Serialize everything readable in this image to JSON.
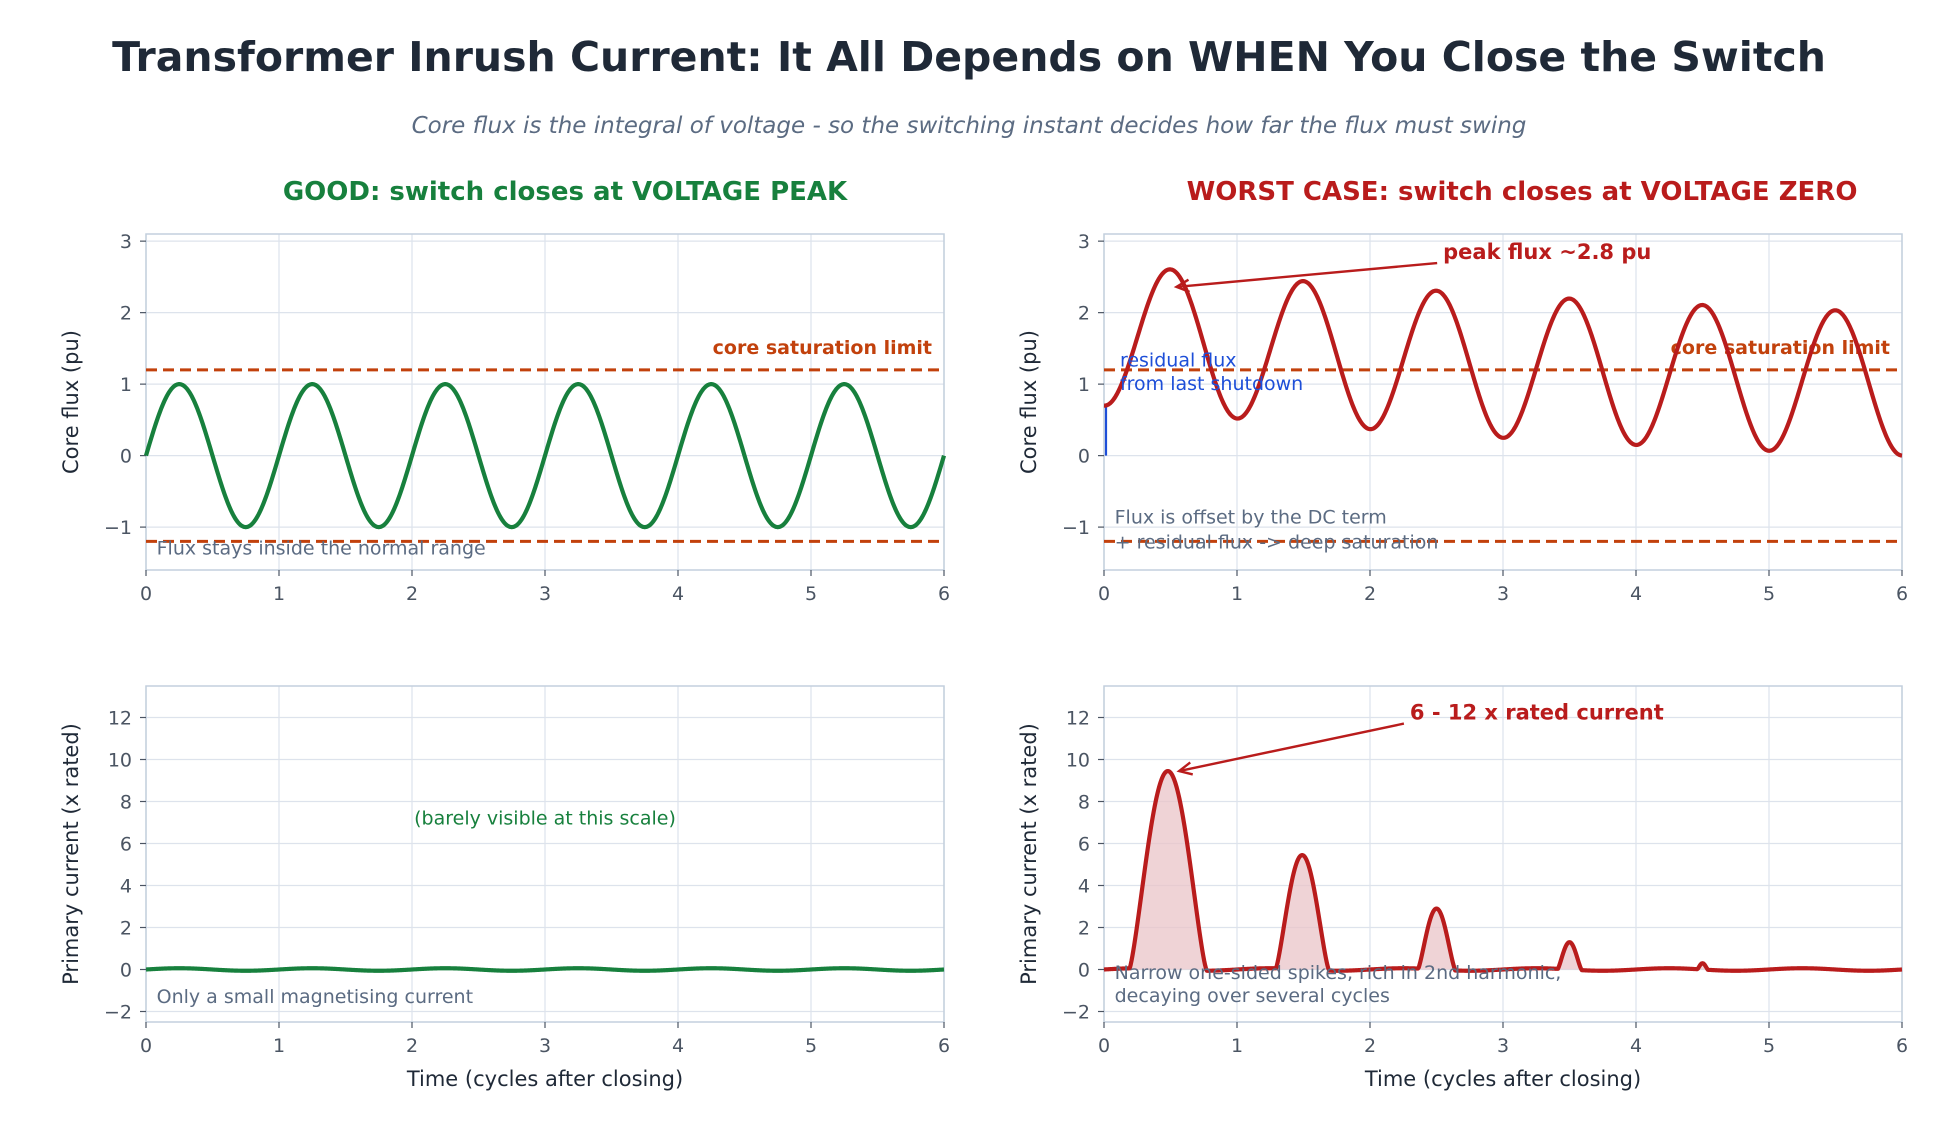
{
  "title": "Transformer Inrush Current: It All Depends on WHEN You Close the Switch",
  "subtitle": "Core flux is the integral of voltage - so the switching instant decides how far the flux must swing",
  "colors": {
    "good": "#17803d",
    "bad": "#b91c1c",
    "limit": "#c2410c",
    "residual": "#1d4ed8",
    "note": "#5b6b82",
    "grid": "#dde3ec",
    "axis": "#c3cfdd",
    "tick": "#4b5563",
    "fill": "#e9c4c8"
  },
  "chart_data": [
    {
      "id": "good-flux",
      "type": "line",
      "panel_title": "GOOD:  switch closes at VOLTAGE PEAK",
      "xlabel": "",
      "ylabel": "Core flux  (pu)",
      "xlim": [
        0,
        6
      ],
      "ylim": [
        -1.6,
        3.1
      ],
      "xticks": [
        0,
        1,
        2,
        3,
        4,
        5,
        6
      ],
      "yticks": [
        -1,
        0,
        1,
        2,
        3
      ],
      "grid": true,
      "limit_lines": [
        1.2,
        -1.2
      ],
      "limit_label": "core saturation limit",
      "series": [
        {
          "waveform": "sine",
          "amplitude": 1.0,
          "phase_start": 0,
          "offset": 0,
          "x_range": [
            0,
            6
          ]
        }
      ],
      "annotations": [
        {
          "text": "Flux stays inside the normal range",
          "x": 0.08,
          "y": -1.38
        }
      ]
    },
    {
      "id": "bad-flux",
      "type": "line",
      "panel_title": "WORST CASE:  switch closes at VOLTAGE ZERO",
      "xlabel": "",
      "ylabel": "Core flux  (pu)",
      "xlim": [
        0,
        6
      ],
      "ylim": [
        -1.6,
        3.1
      ],
      "xticks": [
        0,
        1,
        2,
        3,
        4,
        5,
        6
      ],
      "yticks": [
        -1,
        0,
        1,
        2,
        3
      ],
      "grid": true,
      "limit_lines": [
        1.2,
        -1.2
      ],
      "limit_label": "core saturation limit",
      "residual_flux": 0.7,
      "series": [
        {
          "waveform": "offset-cosine",
          "amplitude": 1.0,
          "residual": 0.7,
          "dc_offset": 1.0,
          "dc_decay_per_cycle": 0.2,
          "x_range": [
            0,
            6
          ]
        }
      ],
      "annotations": [
        {
          "text": "peak flux  ~2.8 pu",
          "x": 2.55,
          "y": 2.75,
          "arrow_to": [
            0.5,
            2.36
          ]
        },
        {
          "text": "residual flux",
          "x": 0.12,
          "y": 1.25
        },
        {
          "text": "from last shutdown",
          "x": 0.12,
          "y": 0.92
        },
        {
          "text": "Flux is offset by the DC term",
          "x": 0.08,
          "y": -0.95
        },
        {
          "text": "+ residual flux -> deep saturation",
          "x": 0.08,
          "y": -1.3
        }
      ]
    },
    {
      "id": "good-current",
      "type": "line",
      "xlabel": "Time  (cycles after closing)",
      "ylabel": "Primary current  (x rated)",
      "xlim": [
        0,
        6
      ],
      "ylim": [
        -2.5,
        13.5
      ],
      "xticks": [
        0,
        1,
        2,
        3,
        4,
        5,
        6
      ],
      "yticks": [
        -2,
        0,
        2,
        4,
        6,
        8,
        10,
        12
      ],
      "grid": true,
      "series": [
        {
          "waveform": "sine",
          "amplitude": 0.06,
          "x_range": [
            0,
            6
          ]
        }
      ],
      "annotations": [
        {
          "text": "(barely visible at this scale)",
          "x": 3.0,
          "y": 6.9,
          "anchor": "middle"
        },
        {
          "text": "Only a small magnetising current",
          "x": 0.08,
          "y": -1.6
        }
      ]
    },
    {
      "id": "bad-current",
      "type": "area",
      "xlabel": "Time  (cycles after closing)",
      "ylabel": "Primary current  (x rated)",
      "xlim": [
        0,
        6
      ],
      "ylim": [
        -2.5,
        13.5
      ],
      "xticks": [
        0,
        1,
        2,
        3,
        4,
        5,
        6
      ],
      "yticks": [
        -2,
        0,
        2,
        4,
        6,
        8,
        10,
        12
      ],
      "grid": true,
      "series": [
        {
          "waveform": "spikes",
          "baseline_amplitude": 0.06,
          "spikes": [
            {
              "center": 0.48,
              "peak": 9.45,
              "half_width": 0.29
            },
            {
              "center": 1.49,
              "peak": 5.45,
              "half_width": 0.2
            },
            {
              "center": 2.5,
              "peak": 2.9,
              "half_width": 0.14
            },
            {
              "center": 3.5,
              "peak": 1.3,
              "half_width": 0.09
            },
            {
              "center": 4.5,
              "peak": 0.3,
              "half_width": 0.04
            }
          ],
          "x_range": [
            0,
            6
          ]
        }
      ],
      "annotations": [
        {
          "text": "6 - 12 x rated current",
          "x": 2.3,
          "y": 11.9,
          "arrow_to": [
            0.52,
            9.45
          ]
        },
        {
          "text": "Narrow one-sided spikes, rich in 2nd harmonic,",
          "x": 0.08,
          "y": -0.45
        },
        {
          "text": "decaying over several cycles",
          "x": 0.08,
          "y": -1.55
        }
      ]
    }
  ]
}
